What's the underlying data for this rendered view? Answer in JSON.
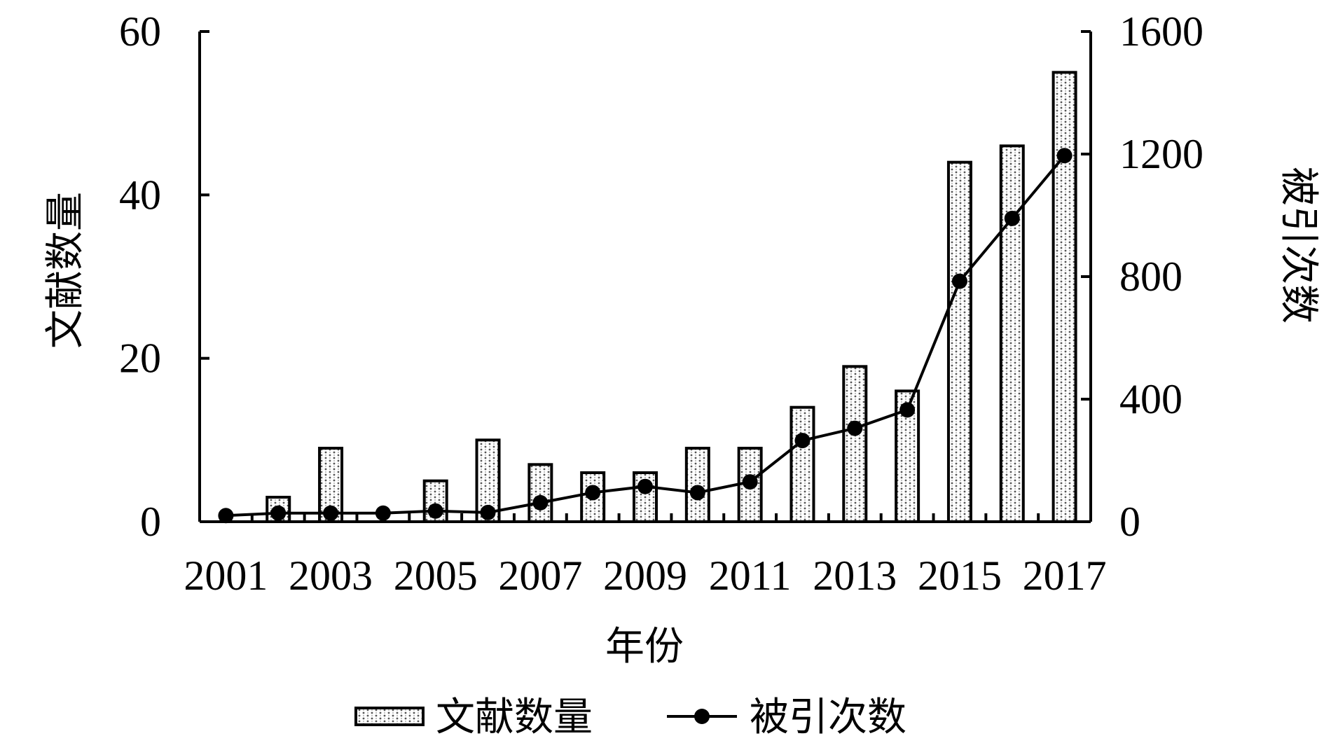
{
  "chart_data": {
    "type": "bar",
    "x": [
      "2001",
      "2002",
      "2003",
      "2004",
      "2005",
      "2006",
      "2007",
      "2008",
      "2009",
      "2010",
      "2011",
      "2012",
      "2013",
      "2014",
      "2015",
      "2016",
      "2017"
    ],
    "x_tick_labels": [
      "2001",
      "2003",
      "2005",
      "2007",
      "2009",
      "2011",
      "2013",
      "2015",
      "2017"
    ],
    "xlabel": "年份",
    "y_left": {
      "label": "文献数量",
      "ylim": [
        0,
        60
      ],
      "ticks": [
        "0",
        "20",
        "40",
        "60"
      ]
    },
    "y_right": {
      "label": "被引次数",
      "ylim": [
        0,
        1600
      ],
      "ticks": [
        "0",
        "400",
        "800",
        "1200",
        "1600"
      ]
    },
    "series": [
      {
        "name": "文献数量",
        "type": "bar",
        "axis": "left",
        "values": [
          0,
          3,
          9,
          0,
          5,
          10,
          7,
          6,
          6,
          9,
          9,
          14,
          19,
          16,
          44,
          46,
          55
        ]
      },
      {
        "name": "被引次数",
        "type": "line",
        "axis": "right",
        "values": [
          20,
          28,
          28,
          28,
          35,
          30,
          62,
          95,
          115,
          95,
          130,
          265,
          305,
          365,
          785,
          990,
          1195
        ]
      }
    ],
    "grid": false,
    "legend_position": "bottom"
  }
}
